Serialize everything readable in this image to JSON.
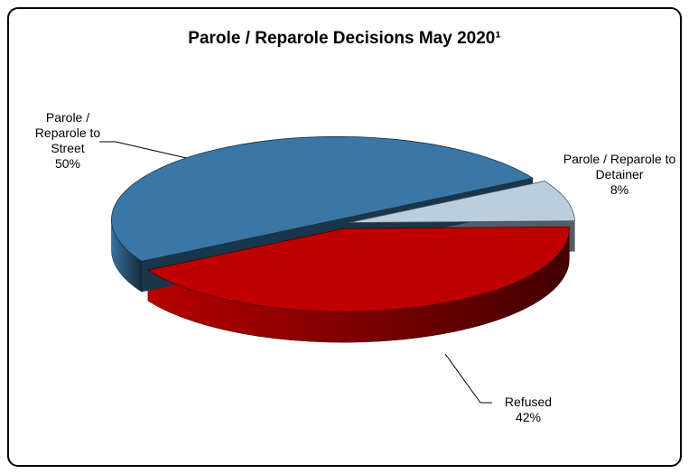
{
  "chart_data": {
    "type": "pie3d",
    "title": "Parole / Reparole Decisions May 2020¹",
    "categories": [
      "Parole / Reparole to Detainer",
      "Refused",
      "Parole / Reparole to Street"
    ],
    "values": [
      8,
      42,
      50
    ],
    "value_labels": [
      "8%",
      "42%",
      "50%"
    ],
    "colors": [
      "#b9cfe0",
      "#c00000",
      "#3a77a7"
    ]
  }
}
